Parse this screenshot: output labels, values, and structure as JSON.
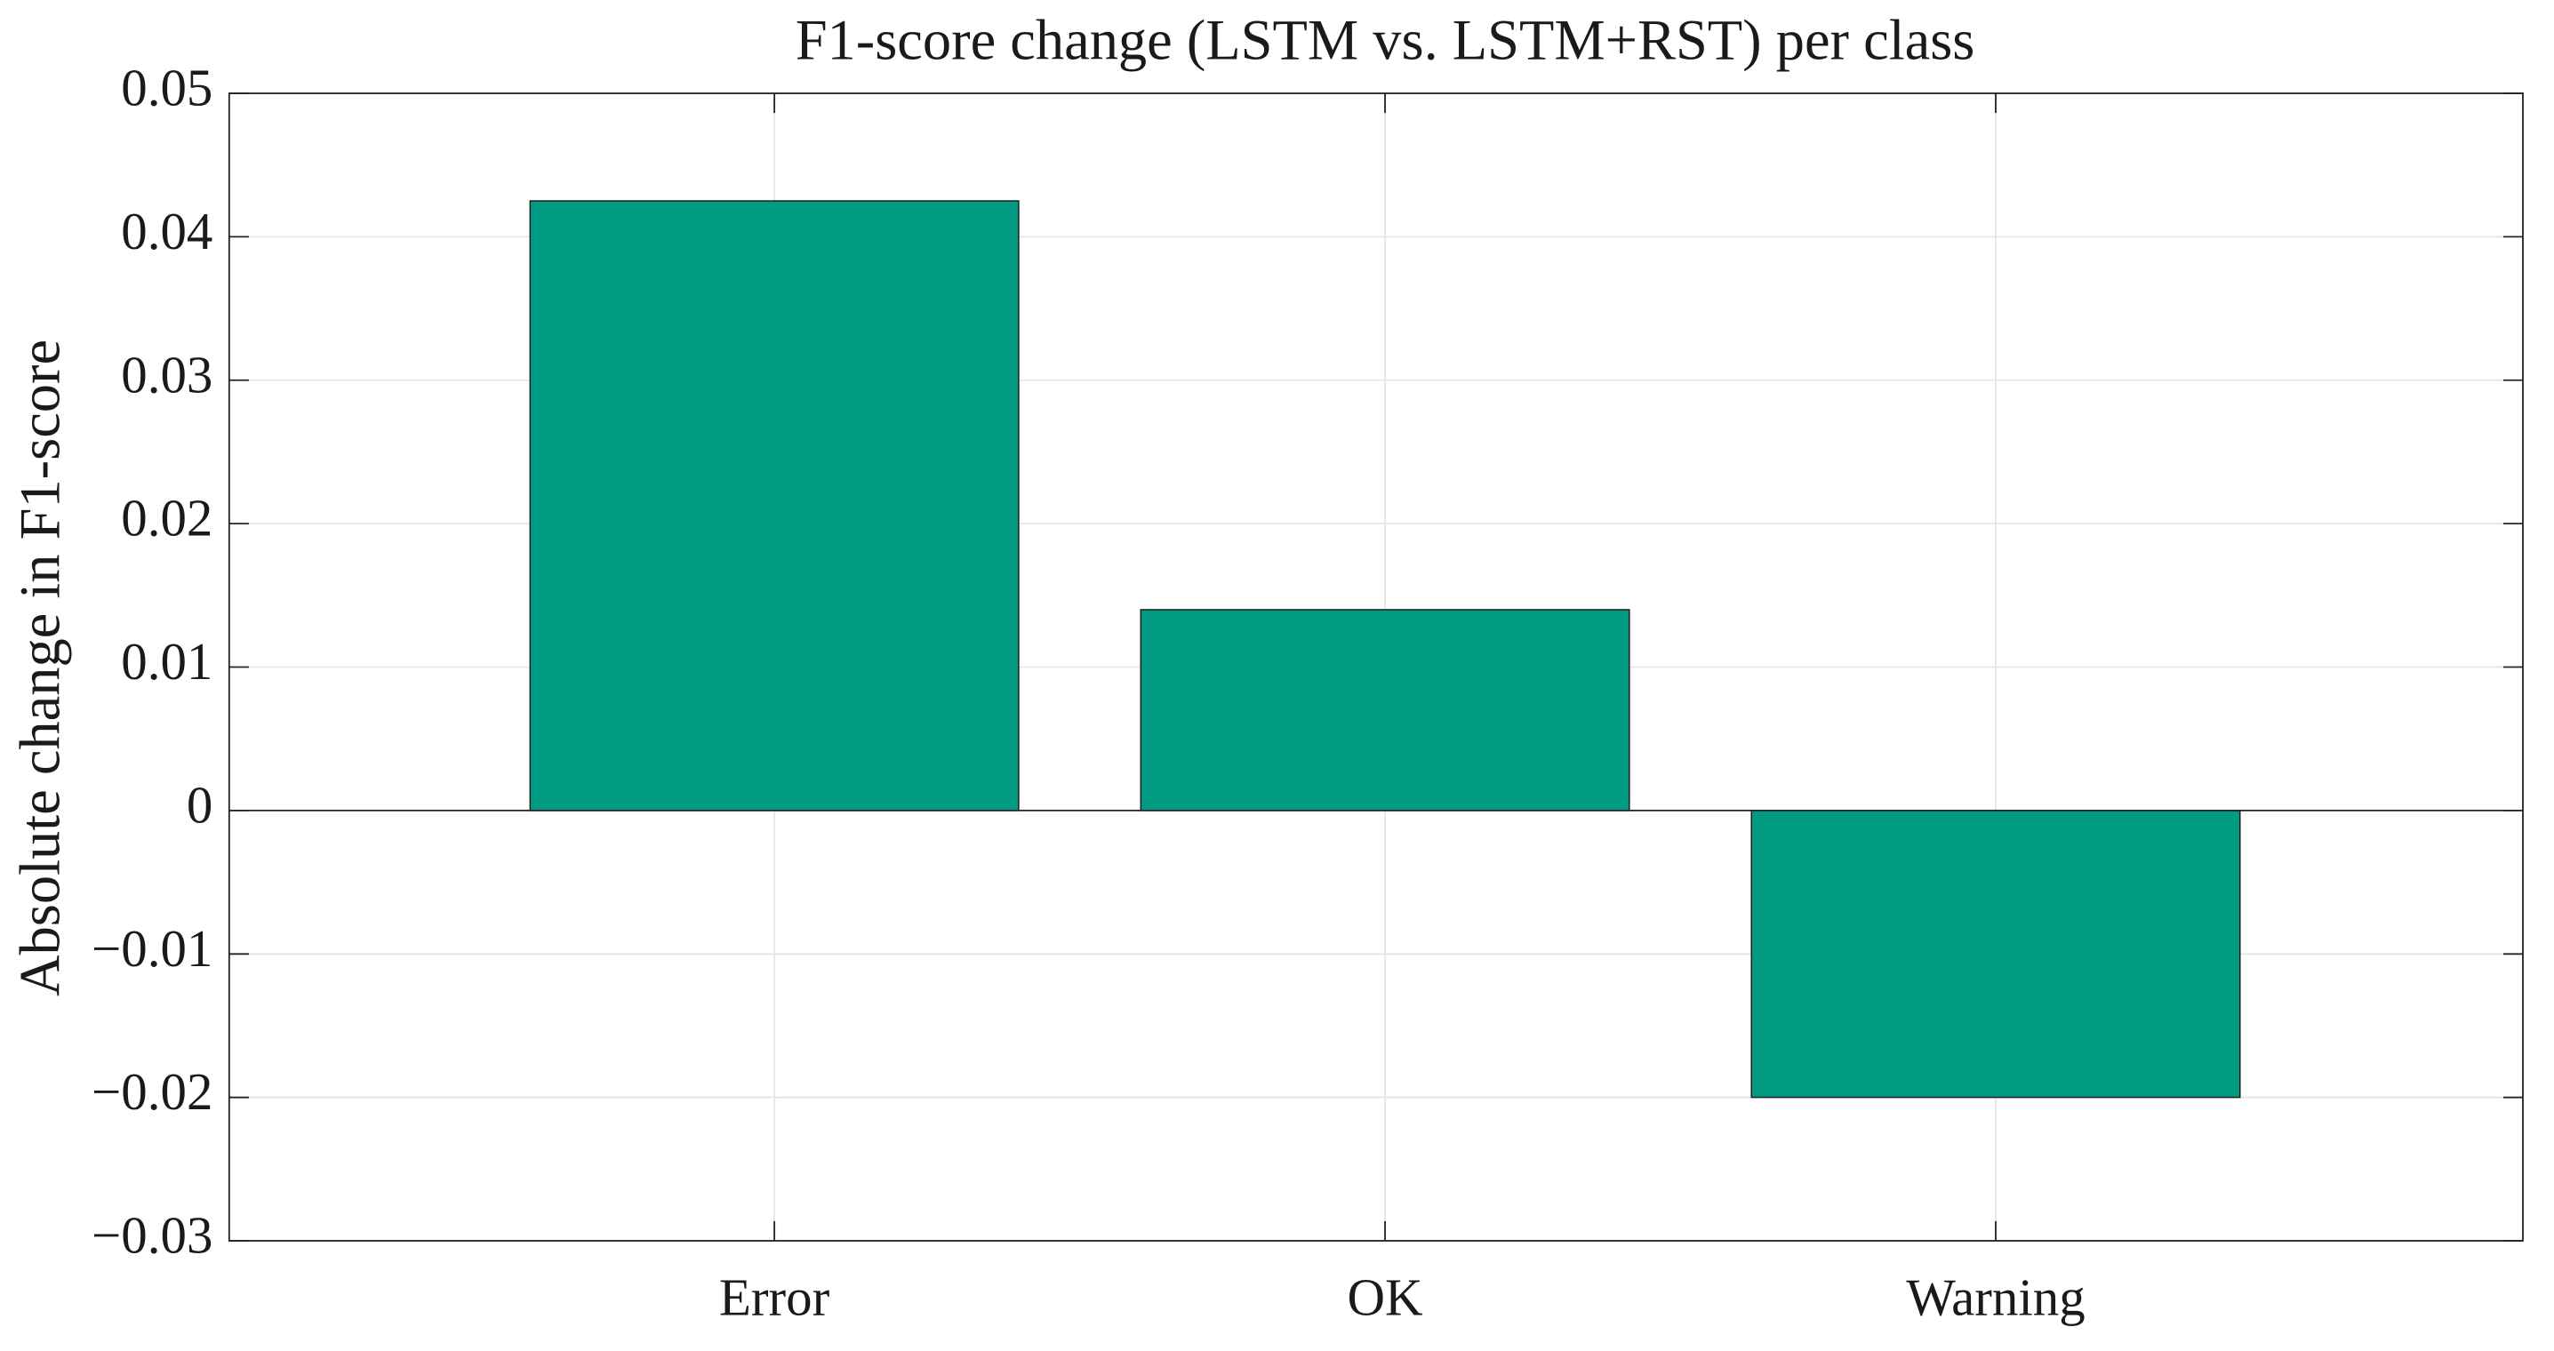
{
  "chart_data": {
    "type": "bar",
    "title": "F1-score change (LSTM vs. LSTM+RST) per class",
    "ylabel": "Absolute change in F1-score",
    "categories": [
      "Error",
      "OK",
      "Warning"
    ],
    "values": [
      0.0425,
      0.014,
      -0.02
    ],
    "color": "#009b82",
    "ylim": [
      -0.03,
      0.05
    ],
    "yticks": [
      {
        "value": -0.03,
        "label": "−0.03"
      },
      {
        "value": -0.02,
        "label": "−0.02"
      },
      {
        "value": -0.01,
        "label": "−0.01"
      },
      0,
      0.01,
      0.02,
      0.03,
      0.04,
      0.05
    ],
    "grid": true
  }
}
